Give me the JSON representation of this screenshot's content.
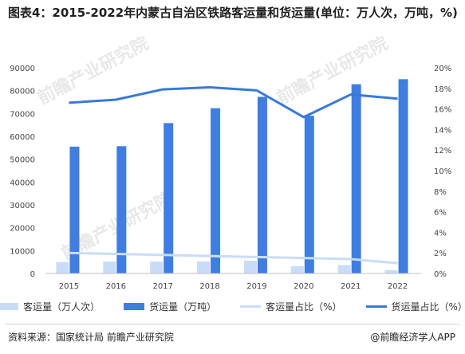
{
  "title": "图表4：2015-2022年内蒙古自治区铁路客运量和货运量(单位：万人次，万吨，%)",
  "source": "资料来源：国家统计局 前瞻产业研究院",
  "brand": "@前瞻经济学人APP",
  "watermark": "前瞻产业研究院",
  "colors": {
    "passenger_bar": "#c9dcf7",
    "freight_bar": "#3f7ee0",
    "passenger_share_line": "#c9dcf7",
    "freight_share_line": "#3a78d8"
  },
  "chart_data": {
    "type": "bar",
    "categories": [
      "2015",
      "2016",
      "2017",
      "2018",
      "2019",
      "2020",
      "2021",
      "2022"
    ],
    "series": [
      {
        "name": "客运量（万人次）",
        "type": "bar",
        "axis": "left",
        "values": [
          5000,
          5200,
          5200,
          5300,
          5600,
          3200,
          3700,
          1500
        ]
      },
      {
        "name": "货运量（万吨）",
        "type": "bar",
        "axis": "left",
        "values": [
          55500,
          55700,
          65800,
          72300,
          77300,
          69000,
          82800,
          85000
        ]
      },
      {
        "name": "客运量占比（%）",
        "type": "line",
        "axis": "right",
        "values": [
          2.0,
          1.9,
          1.8,
          1.7,
          1.6,
          1.5,
          1.4,
          1.0
        ]
      },
      {
        "name": "货运量占比（%）",
        "type": "line",
        "axis": "right",
        "values": [
          16.6,
          16.9,
          17.9,
          18.1,
          17.8,
          15.2,
          17.4,
          17.0
        ]
      }
    ],
    "y_left": {
      "min": 0,
      "max": 90000,
      "ticks": [
        0,
        10000,
        20000,
        30000,
        40000,
        50000,
        60000,
        70000,
        80000,
        90000
      ]
    },
    "y_right": {
      "min": 0,
      "max": 20,
      "ticks": [
        "0%",
        "2%",
        "4%",
        "6%",
        "8%",
        "10%",
        "12%",
        "14%",
        "16%",
        "18%",
        "20%"
      ]
    },
    "grid": false,
    "legend": "bottom"
  }
}
